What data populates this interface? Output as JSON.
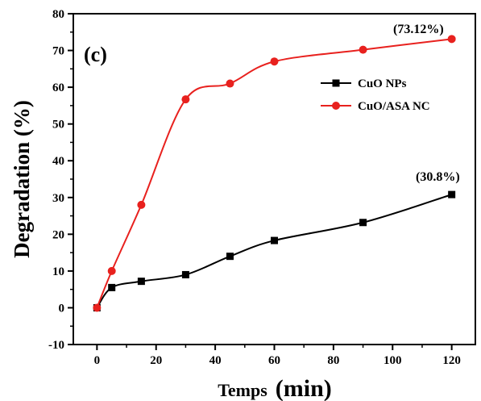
{
  "chart_data": {
    "type": "line",
    "panel_label": "(c)",
    "xlabel_prefix": "Temps",
    "xlabel_unit": "(min)",
    "ylabel": "Degradation (%)",
    "xlim": [
      -8,
      128
    ],
    "ylim": [
      -10,
      80
    ],
    "xticks": [
      0,
      20,
      40,
      60,
      80,
      100,
      120
    ],
    "yticks": [
      -10,
      0,
      10,
      20,
      30,
      40,
      50,
      60,
      70,
      80
    ],
    "legend_position": "right",
    "series": [
      {
        "name": "CuO NPs",
        "color": "#000000",
        "marker": "square",
        "x": [
          0,
          5,
          15,
          30,
          45,
          60,
          90,
          120
        ],
        "y": [
          0,
          5.5,
          7.2,
          9.0,
          14.0,
          18.3,
          23.2,
          30.8
        ]
      },
      {
        "name": "CuO/ASA NC",
        "color": "#e8211e",
        "marker": "circle",
        "x": [
          0,
          5,
          15,
          30,
          45,
          60,
          90,
          120
        ],
        "y": [
          0,
          10.0,
          28.0,
          56.7,
          61.0,
          67.0,
          70.2,
          73.12
        ]
      }
    ],
    "annotations": [
      {
        "text": "(73.12%)",
        "x": 120,
        "y": 73.12
      },
      {
        "text": "(30.8%)",
        "x": 120,
        "y": 30.8
      }
    ]
  }
}
